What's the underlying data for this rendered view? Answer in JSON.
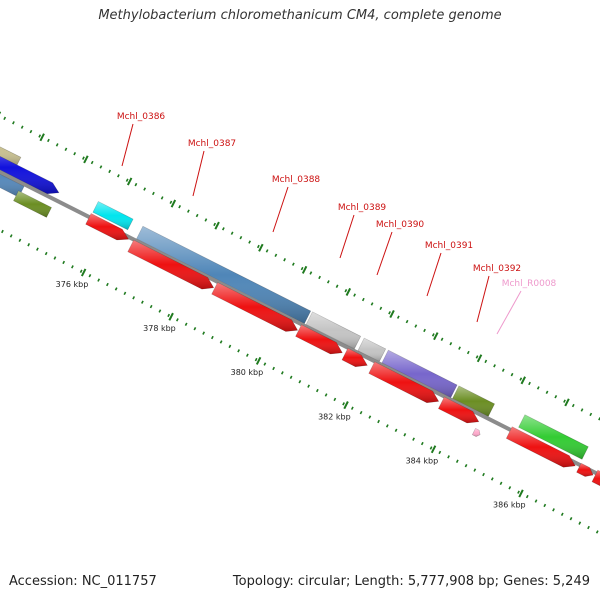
{
  "title": "Methylobacterium chloromethanicum CM4, complete genome",
  "footer": {
    "accession": "Accession: NC_011757",
    "stats": "Topology: circular; Length: 5,777,908 bp; Genes: 5,249"
  },
  "colors": {
    "backbone": "#8c8c8c",
    "ticks": "#1f7a1f",
    "cds_reverse": "#ee1111",
    "label_red": "#cc1111",
    "label_pink": "#ee99cc"
  },
  "ticks": [
    {
      "label": "376 kbp",
      "pos": 376
    },
    {
      "label": "378 kbp",
      "pos": 378
    },
    {
      "label": "380 kbp",
      "pos": 380
    },
    {
      "label": "382 kbp",
      "pos": 382
    },
    {
      "label": "384 kbp",
      "pos": 384
    },
    {
      "label": "386 kbp",
      "pos": 386
    }
  ],
  "gene_labels": [
    {
      "name": "Mchl_0386",
      "color": "#cc1111"
    },
    {
      "name": "Mchl_0387",
      "color": "#cc1111"
    },
    {
      "name": "Mchl_0388",
      "color": "#cc1111"
    },
    {
      "name": "Mchl_0389",
      "color": "#cc1111"
    },
    {
      "name": "Mchl_0390",
      "color": "#cc1111"
    },
    {
      "name": "Mchl_0391",
      "color": "#cc1111"
    },
    {
      "name": "Mchl_0392",
      "color": "#cc1111"
    },
    {
      "name": "Mchl_R0008",
      "color": "#ee99cc"
    }
  ]
}
